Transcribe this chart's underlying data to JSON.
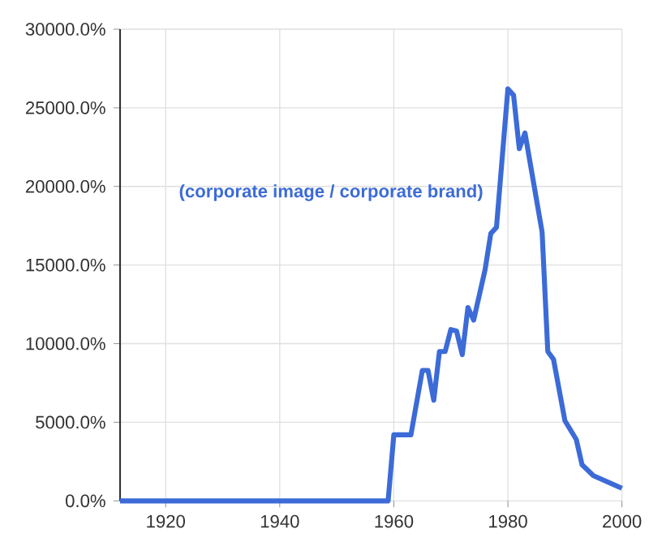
{
  "chart_data": {
    "type": "line",
    "x": [
      1912,
      1959,
      1960,
      1963,
      1965,
      1966,
      1967,
      1968,
      1969,
      1970,
      1971,
      1972,
      1973,
      1974,
      1976,
      1977,
      1978,
      1980,
      1981,
      1982,
      1983,
      1986,
      1987,
      1988,
      1990,
      1992,
      1993,
      1995,
      2000
    ],
    "series": [
      {
        "name": "(corporate image / corporate brand)",
        "color": "#3c6bd8",
        "values": [
          0,
          0,
          4200,
          4200,
          8300,
          8300,
          6400,
          9500,
          9500,
          10900,
          10800,
          9300,
          12300,
          11500,
          14700,
          17000,
          17400,
          26200,
          25800,
          22400,
          23400,
          17100,
          9500,
          9000,
          5100,
          3900,
          2300,
          1600,
          800
        ]
      }
    ],
    "xlim": [
      1912,
      2000
    ],
    "xticks": [
      1920,
      1940,
      1960,
      1980,
      2000
    ],
    "ylim": [
      0,
      30000
    ],
    "yticks": [
      {
        "value": 0,
        "label": "0.0%"
      },
      {
        "value": 5000,
        "label": "5000.0%"
      },
      {
        "value": 10000,
        "label": "10000.0%"
      },
      {
        "value": 15000,
        "label": "15000.0%"
      },
      {
        "value": 20000,
        "label": "20000.0%"
      },
      {
        "value": 25000,
        "label": "25000.0%"
      },
      {
        "value": 30000,
        "label": "30000.0%"
      }
    ],
    "grid": true,
    "legend": false,
    "marker": "none",
    "line_style": "solid"
  }
}
